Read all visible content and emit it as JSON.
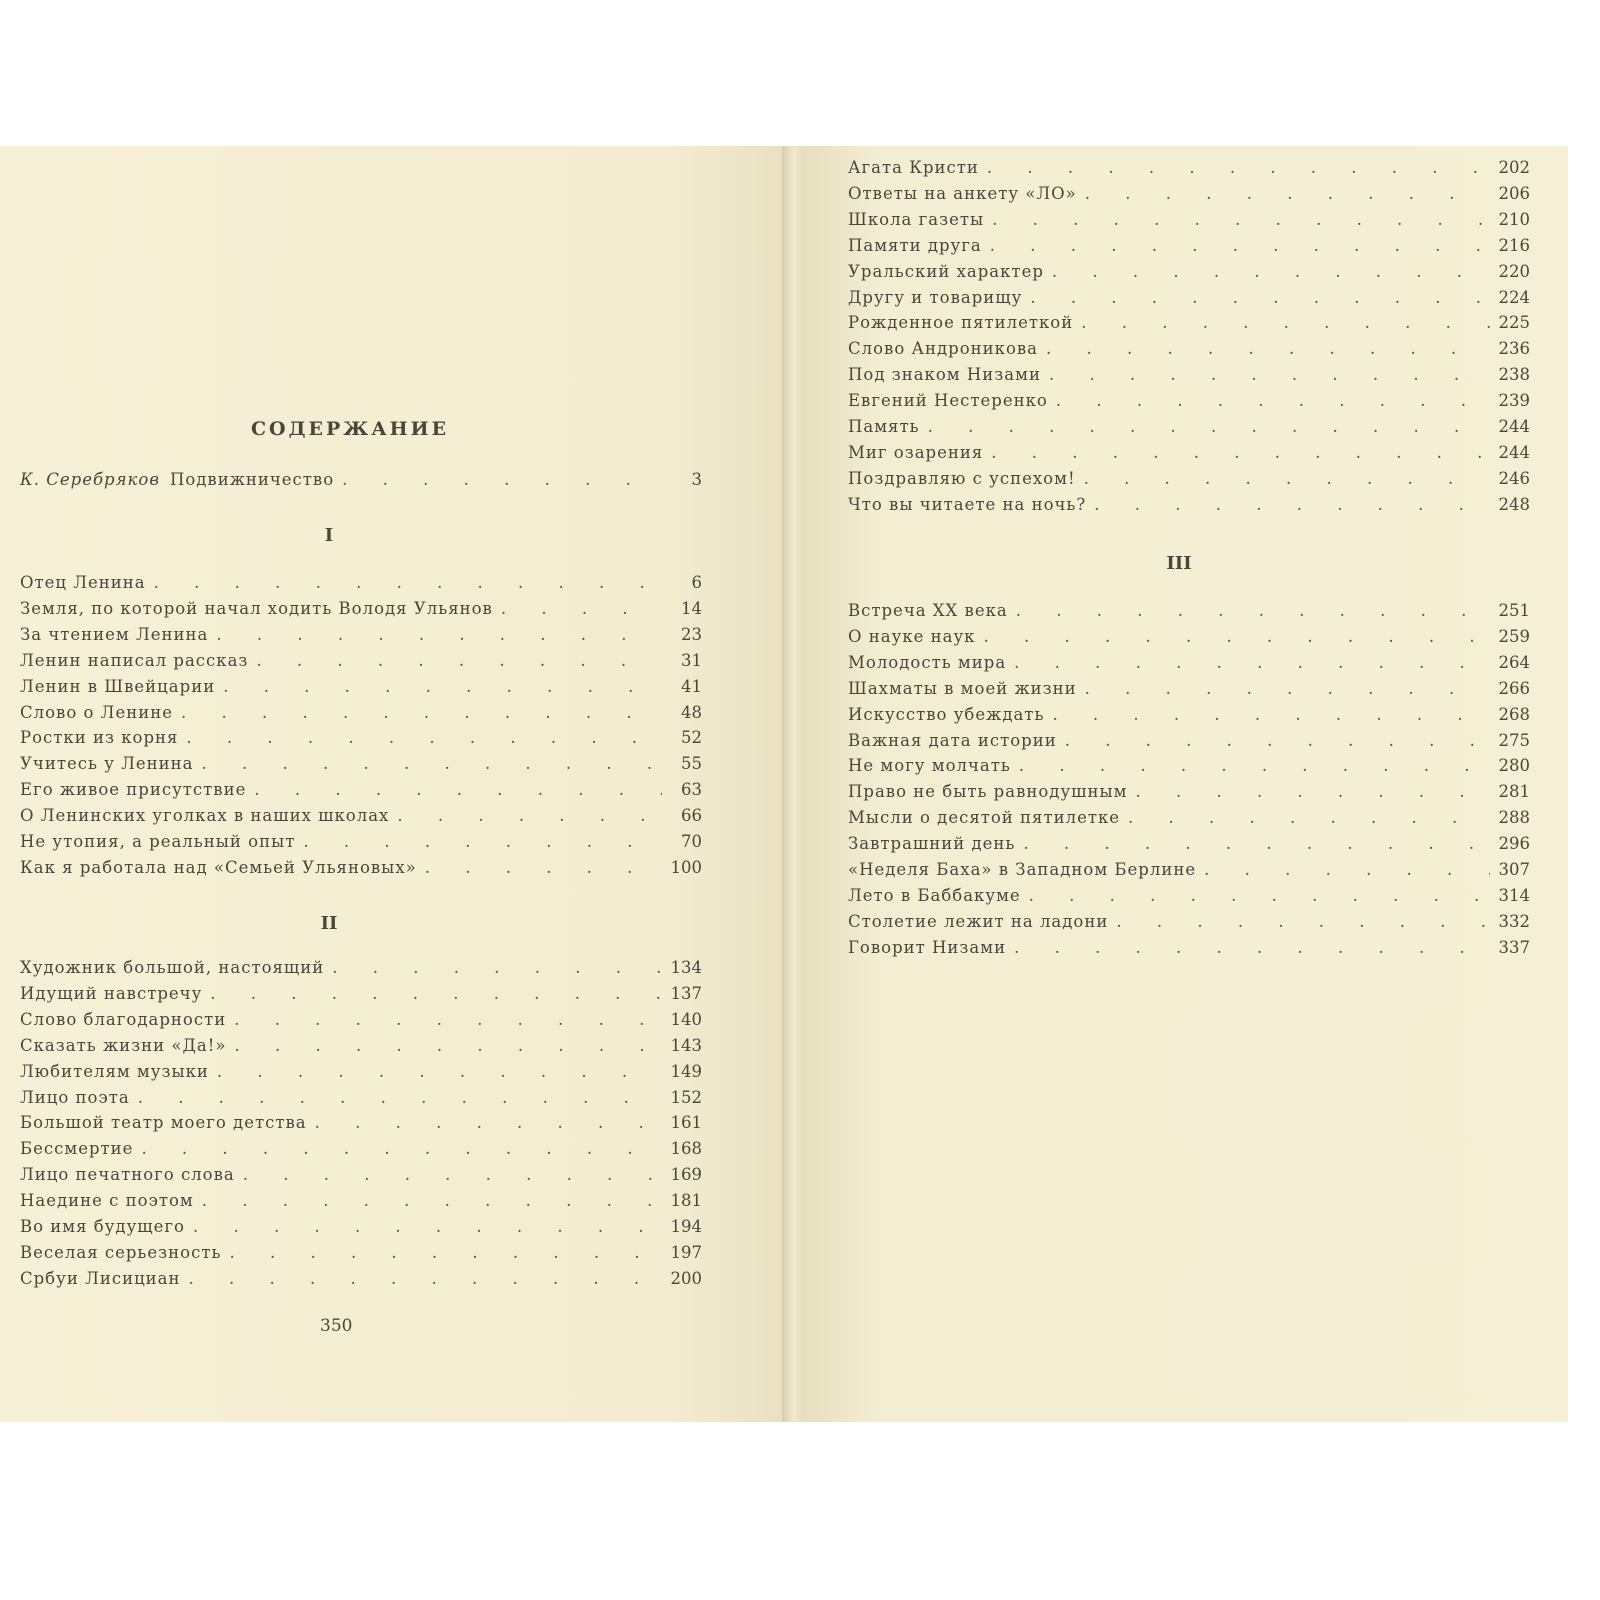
{
  "title": "СОДЕРЖАНИЕ",
  "intro": {
    "author": "К. Серебряков",
    "title": "Подвижничество",
    "page": "3"
  },
  "sections": [
    {
      "label": "I",
      "entries": [
        {
          "title": "Отец Ленина",
          "page": "6"
        },
        {
          "title": "Земля, по которой начал ходить Володя Ульянов",
          "page": "14"
        },
        {
          "title": "За чтением Ленина",
          "page": "23"
        },
        {
          "title": "Ленин написал рассказ",
          "page": "31"
        },
        {
          "title": "Ленин в Швейцарии",
          "page": "41"
        },
        {
          "title": "Слово о Ленине",
          "page": "48"
        },
        {
          "title": "Ростки из корня",
          "page": "52"
        },
        {
          "title": "Учитесь у Ленина",
          "page": "55"
        },
        {
          "title": "Его живое присутствие",
          "page": "63"
        },
        {
          "title": "О Ленинских уголках в наших школах",
          "page": "66"
        },
        {
          "title": "Не утопия, а реальный опыт",
          "page": "70"
        },
        {
          "title": "Как я работала над «Семьей Ульяновых»",
          "page": "100"
        }
      ]
    },
    {
      "label": "II",
      "entries": [
        {
          "title": "Художник большой, настоящий",
          "page": "134"
        },
        {
          "title": "Идущий навстречу",
          "page": "137"
        },
        {
          "title": "Слово благодарности",
          "page": "140"
        },
        {
          "title": "Сказать жизни «Да!»",
          "page": "143"
        },
        {
          "title": "Любителям музыки",
          "page": "149"
        },
        {
          "title": "Лицо поэта",
          "page": "152"
        },
        {
          "title": "Большой театр моего детства",
          "page": "161"
        },
        {
          "title": "Бессмертие",
          "page": "168"
        },
        {
          "title": "Лицо печатного слова",
          "page": "169"
        },
        {
          "title": "Наедине с поэтом",
          "page": "181"
        },
        {
          "title": "Во имя будущего",
          "page": "194"
        },
        {
          "title": "Веселая серьезность",
          "page": "197"
        },
        {
          "title": "Србуи Лисициан",
          "page": "200"
        },
        {
          "title": "Агата Кристи",
          "page": "202"
        },
        {
          "title": "Ответы на анкету «ЛО»",
          "page": "206"
        },
        {
          "title": "Школа газеты",
          "page": "210"
        },
        {
          "title": "Памяти друга",
          "page": "216"
        },
        {
          "title": "Уральский характер",
          "page": "220"
        },
        {
          "title": "Другу и товарищу",
          "page": "224"
        },
        {
          "title": "Рожденное пятилеткой",
          "page": "225"
        },
        {
          "title": "Слово Андроникова",
          "page": "236"
        },
        {
          "title": "Под знаком Низами",
          "page": "238"
        },
        {
          "title": "Евгений Нестеренко",
          "page": "239"
        },
        {
          "title": "Память",
          "page": "244"
        },
        {
          "title": "Миг озарения",
          "page": "244"
        },
        {
          "title": "Поздравляю с успехом!",
          "page": "246"
        },
        {
          "title": "Что вы читаете на ночь?",
          "page": "248"
        }
      ]
    },
    {
      "label": "III",
      "entries": [
        {
          "title": "Встреча XX века",
          "page": "251"
        },
        {
          "title": "О науке наук",
          "page": "259"
        },
        {
          "title": "Молодость мира",
          "page": "264"
        },
        {
          "title": "Шахматы в моей жизни",
          "page": "266"
        },
        {
          "title": "Искусство убеждать",
          "page": "268"
        },
        {
          "title": "Важная дата истории",
          "page": "275"
        },
        {
          "title": "Не могу молчать",
          "page": "280"
        },
        {
          "title": "Право не быть равнодушным",
          "page": "281"
        },
        {
          "title": "Мысли о десятой пятилетке",
          "page": "288"
        },
        {
          "title": "Завтрашний день",
          "page": "296"
        },
        {
          "title": "«Неделя Баха» в Западном Берлине",
          "page": "307"
        },
        {
          "title": "Лето в Баббакуме",
          "page": "314"
        },
        {
          "title": "Столетие лежит на ладони",
          "page": "332"
        },
        {
          "title": "Говорит Низами",
          "page": "337"
        }
      ]
    }
  ],
  "folio": "350"
}
